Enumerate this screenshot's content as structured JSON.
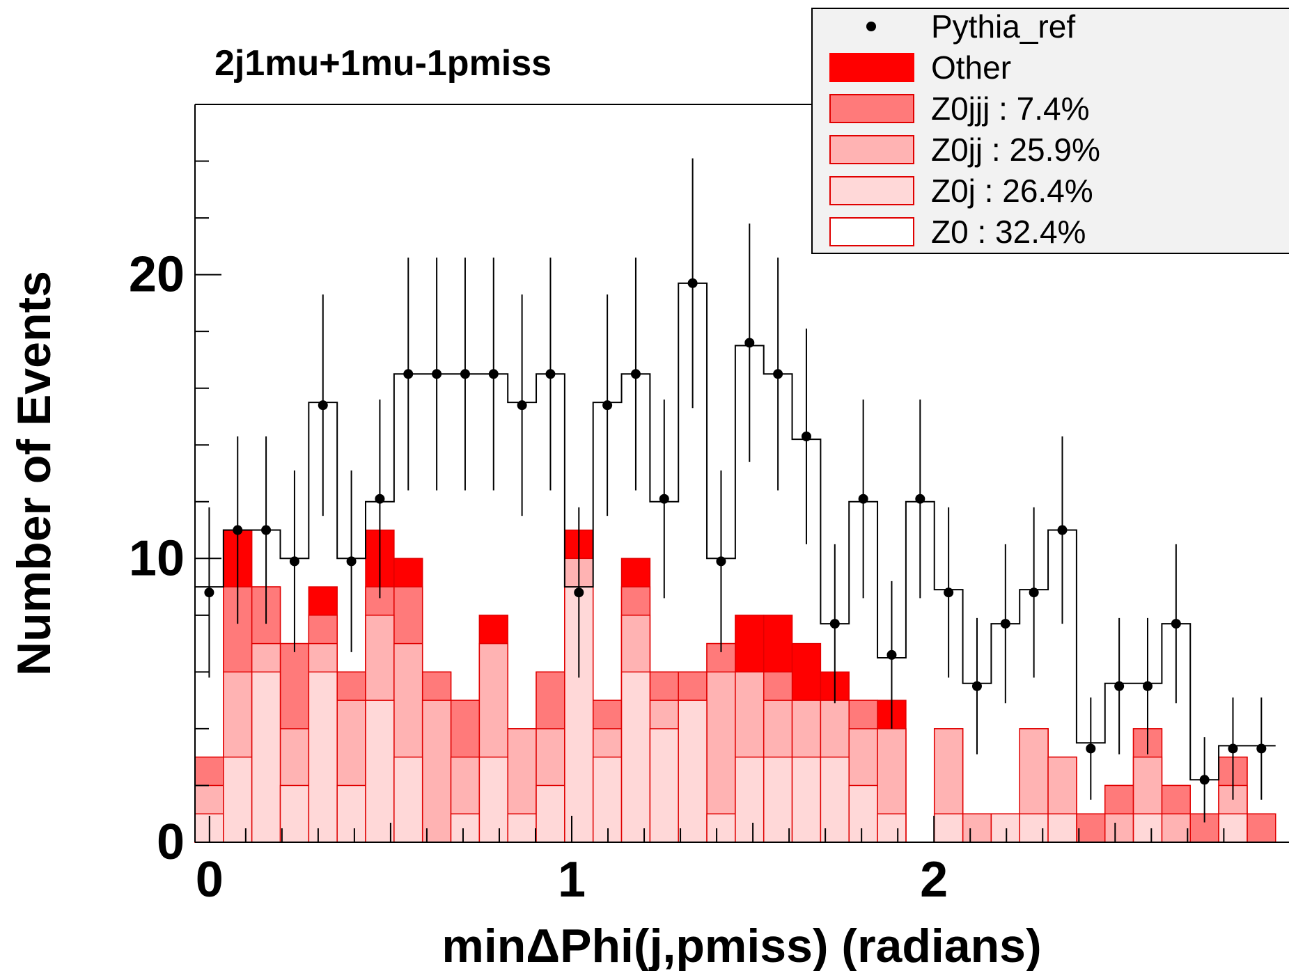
{
  "chart_data": {
    "type": "bar",
    "title": "2j1mu+1mu-1pmiss",
    "xlabel": "minΔPhi(j,pmiss) (radians)",
    "ylabel": "Number of Events",
    "xlim": [
      -0.04,
      2.98
    ],
    "ylim": [
      0,
      26
    ],
    "bin_width": 0.0785,
    "x_start": -0.04,
    "x_ticks": [
      {
        "value": 0,
        "label": "0"
      },
      {
        "value": 1,
        "label": "1"
      },
      {
        "value": 2,
        "label": "2"
      }
    ],
    "y_ticks": [
      {
        "value": 0,
        "label": "0"
      },
      {
        "value": 10,
        "label": "10"
      },
      {
        "value": 20,
        "label": "20"
      }
    ],
    "legend_position": "top-right",
    "series": [
      {
        "name": "Z0 : 32.4%",
        "color": "#ffffff",
        "values": [
          9,
          11,
          11,
          10,
          15.5,
          10,
          12,
          16.5,
          16.5,
          16.5,
          16.5,
          15.5,
          16.5,
          9,
          15.5,
          16.5,
          12,
          19.7,
          10,
          17.5,
          16.5,
          14.2,
          7.7,
          12,
          6.5,
          12,
          8.9,
          5.6,
          7.7,
          8.9,
          11,
          3.5,
          5.6,
          5.6,
          7.7,
          2.2,
          3.4,
          3.4
        ]
      },
      {
        "name": "Z0j : 26.4%",
        "color": "#ffd8d8",
        "values": [
          1,
          3,
          6,
          2,
          6,
          2,
          5,
          3,
          0,
          1,
          3,
          1,
          2,
          9,
          3,
          6,
          4,
          5,
          1,
          3,
          3,
          3,
          3,
          2,
          1,
          0,
          1,
          0,
          1,
          1,
          1,
          0,
          0,
          1,
          0,
          0,
          1,
          0
        ]
      },
      {
        "name": "Z0jj : 25.9%",
        "color": "#ffb3b3",
        "values": [
          2,
          6,
          7,
          4,
          7,
          5,
          8,
          7,
          5,
          3,
          7,
          4,
          4,
          10,
          4,
          8,
          5,
          5,
          6,
          6,
          5,
          5,
          5,
          4,
          4,
          0,
          4,
          1,
          1,
          4,
          3,
          0,
          1,
          3,
          1,
          0,
          2,
          0
        ]
      },
      {
        "name": "Z0jjj : 7.4%",
        "color": "#ff7a7a",
        "values": [
          3,
          9,
          9,
          7,
          8,
          6,
          9,
          9,
          6,
          5,
          7,
          4,
          6,
          10,
          5,
          9,
          6,
          6,
          7,
          6,
          6,
          5,
          5,
          5,
          4,
          0,
          4,
          1,
          1,
          4,
          3,
          1,
          2,
          4,
          2,
          1,
          3,
          1
        ]
      },
      {
        "name": "Other",
        "color": "#ff0000",
        "values": [
          3,
          11,
          9,
          7,
          9,
          6,
          11,
          10,
          6,
          5,
          8,
          4,
          6,
          11,
          5,
          10,
          6,
          6,
          7,
          8,
          8,
          7,
          6,
          5,
          5,
          0,
          4,
          1,
          1,
          4,
          3,
          1,
          2,
          4,
          2,
          1,
          3,
          1
        ]
      },
      {
        "name": "Pythia_ref",
        "color": "#000000",
        "values": [
          8.8,
          11,
          11,
          9.9,
          15.4,
          9.9,
          12.1,
          16.5,
          16.5,
          16.5,
          16.5,
          15.4,
          16.5,
          8.8,
          15.4,
          16.5,
          12.1,
          19.7,
          9.9,
          17.6,
          16.5,
          14.3,
          7.7,
          12.1,
          6.6,
          12.1,
          8.8,
          5.5,
          7.7,
          8.8,
          11,
          3.3,
          5.5,
          5.5,
          7.7,
          2.2,
          3.3,
          3.3
        ],
        "errors": [
          3,
          3.3,
          3.3,
          3.2,
          3.9,
          3.2,
          3.5,
          4.1,
          4.1,
          4.1,
          4.1,
          3.9,
          4.1,
          3,
          3.9,
          4.1,
          3.5,
          4.4,
          3.2,
          4.2,
          4.1,
          3.8,
          2.8,
          3.5,
          2.6,
          3.5,
          3,
          2.4,
          2.8,
          3,
          3.3,
          1.8,
          2.4,
          2.4,
          2.8,
          1.5,
          1.8,
          1.8
        ]
      }
    ]
  }
}
